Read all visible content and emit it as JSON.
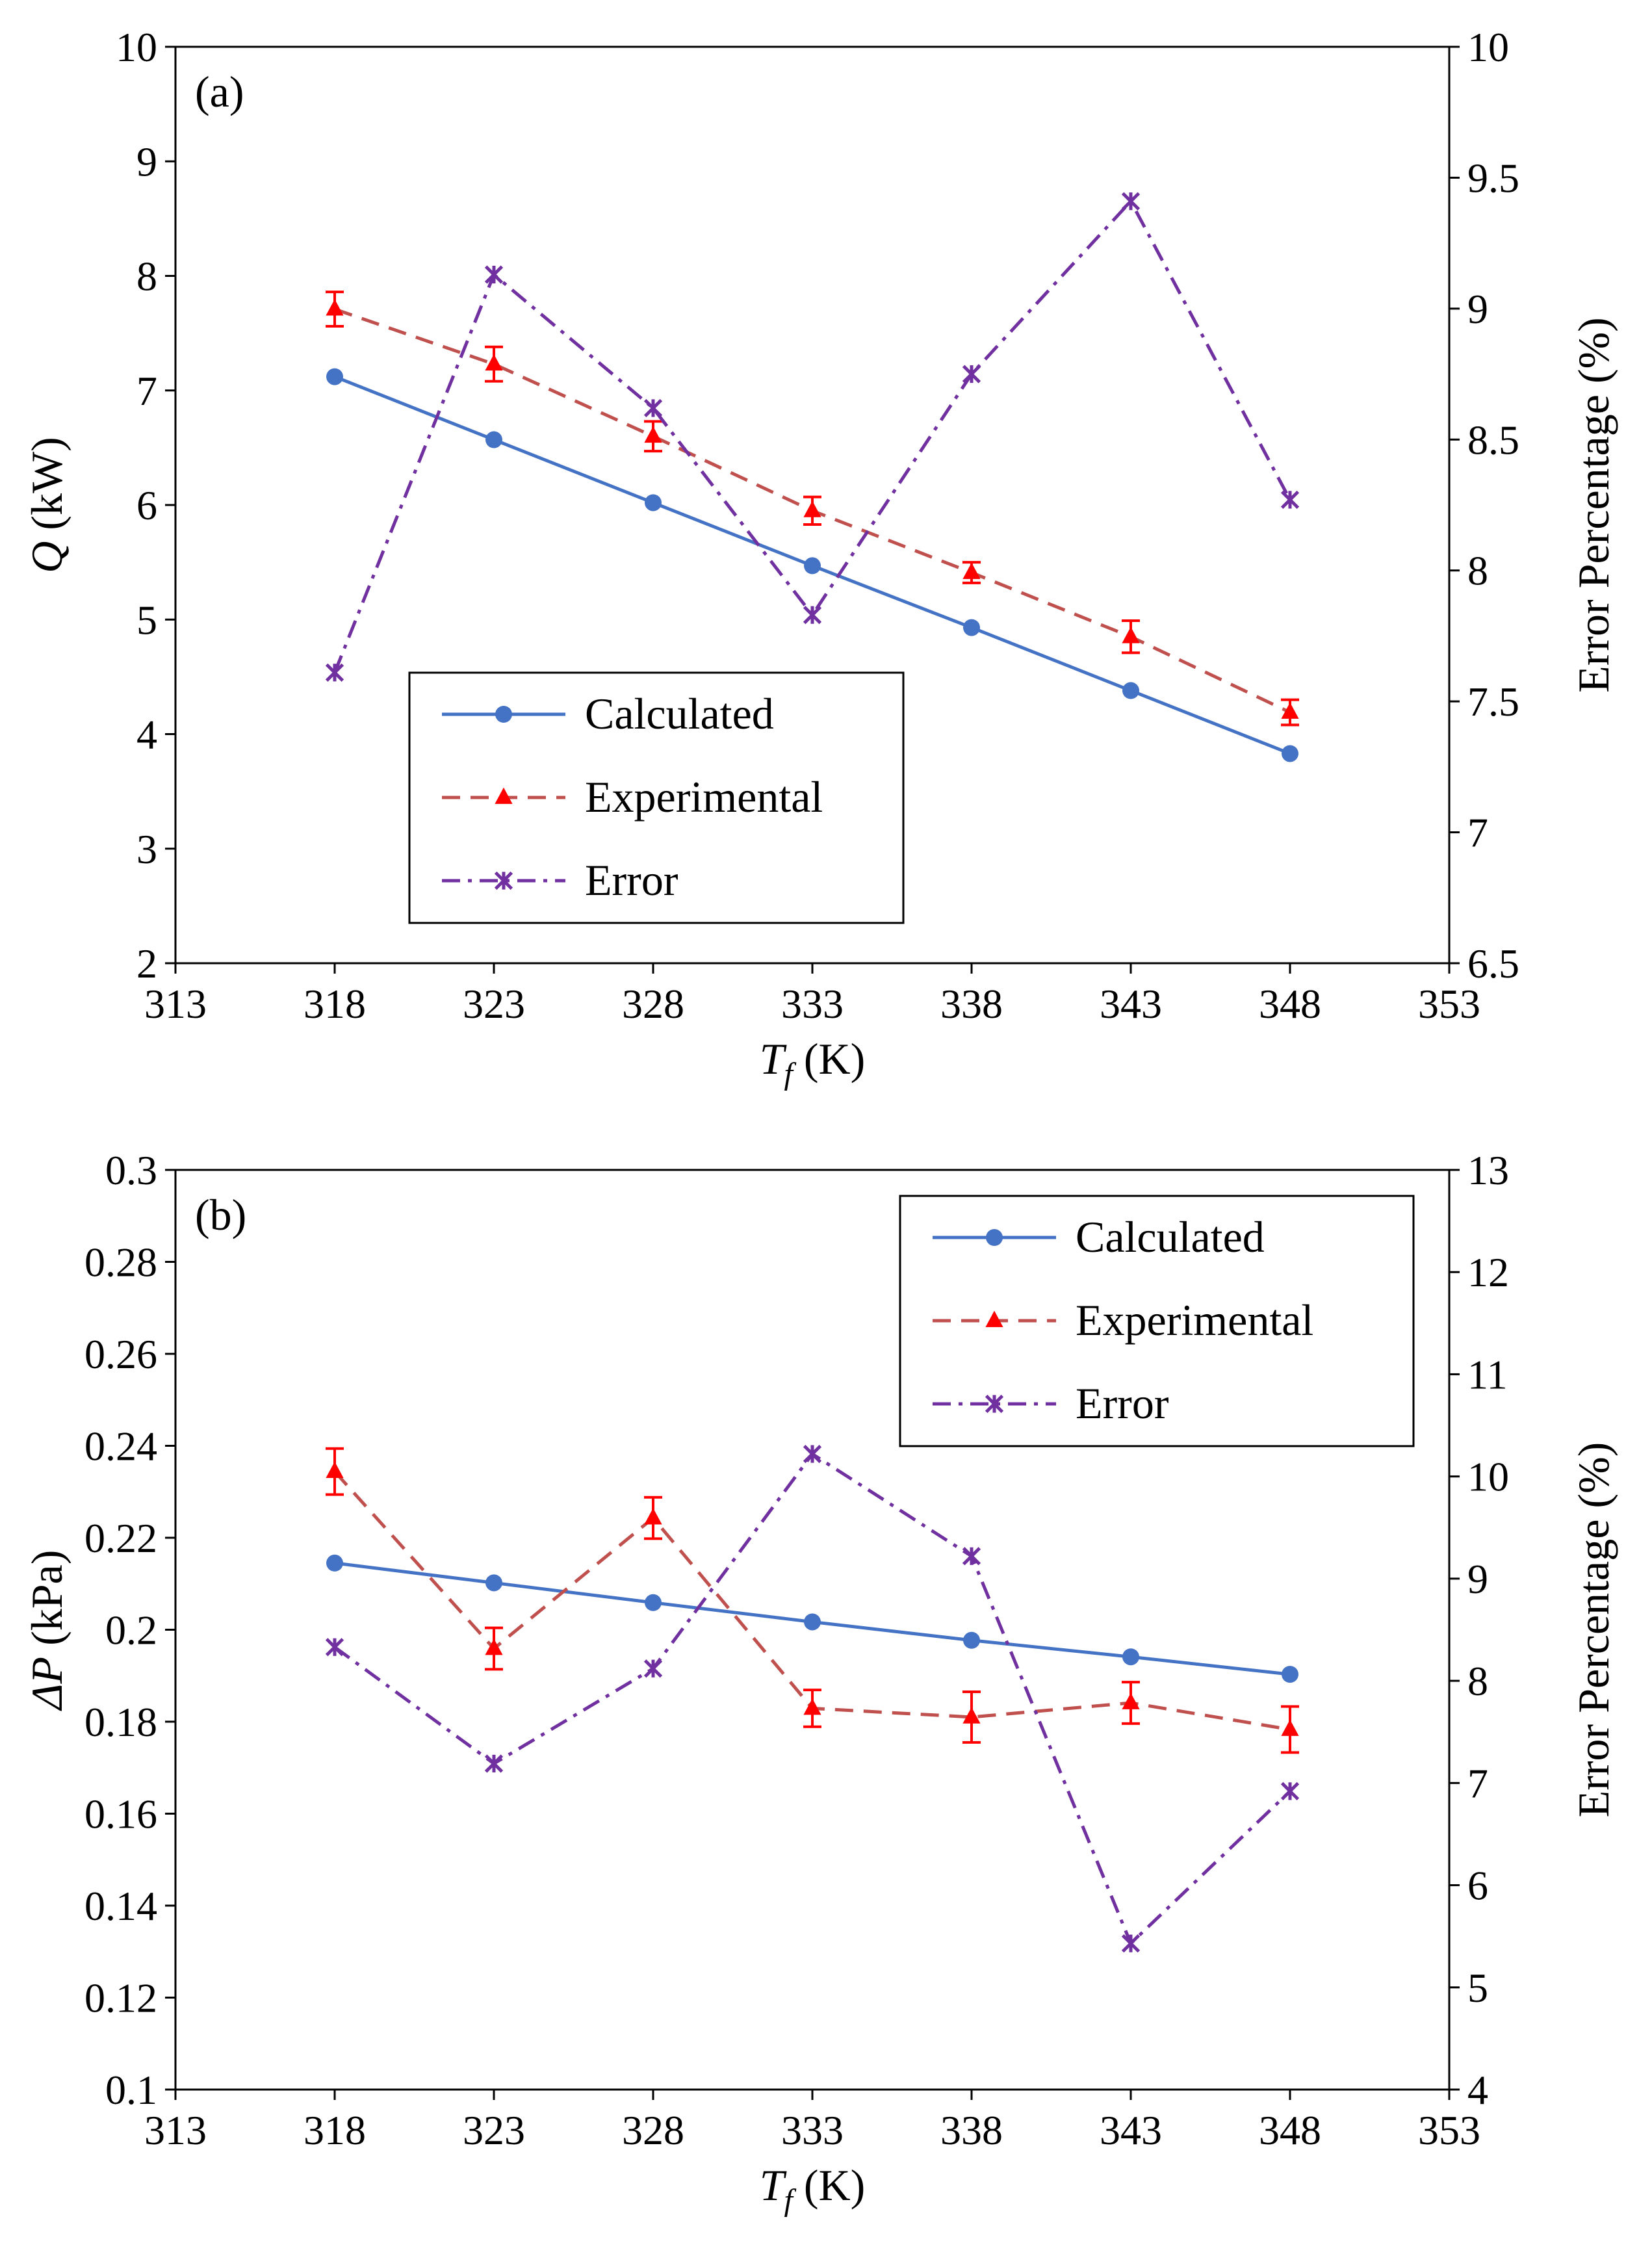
{
  "figure": {
    "series_styles": {
      "calculated": {
        "color": "#4472C4",
        "marker": "circle",
        "dash": "solid"
      },
      "experimental": {
        "color": "#C0504D",
        "marker_color": "#FF0000",
        "marker": "triangle",
        "dash": "dashed"
      },
      "error": {
        "color": "#7030A0",
        "marker": "asterisk",
        "dash": "dash-dot"
      }
    }
  },
  "chart_data": [
    {
      "type": "line",
      "panel_label": "(a)",
      "xlabel": {
        "main": "T",
        "sub": "f",
        "unit": " (K)"
      },
      "ylabel": {
        "main": "Q",
        "unit": " (kW)"
      },
      "y2label": "Error Percentage (%)",
      "xlim": [
        313,
        353
      ],
      "ylim": [
        2,
        10
      ],
      "y2lim": [
        6.5,
        10
      ],
      "x_ticks": [
        "313",
        "318",
        "323",
        "328",
        "333",
        "338",
        "343",
        "348",
        "353"
      ],
      "y_ticks": [
        "2",
        "3",
        "4",
        "5",
        "6",
        "7",
        "8",
        "9",
        "10"
      ],
      "y2_ticks": [
        "6.5",
        "7",
        "7.5",
        "8",
        "8.5",
        "9",
        "9.5",
        "10"
      ],
      "x": [
        318,
        323,
        328,
        333,
        338,
        343,
        348
      ],
      "series": [
        {
          "key": "calculated",
          "name": "Calculated",
          "axis": "left",
          "values": [
            7.12,
            6.57,
            6.02,
            5.47,
            4.93,
            4.38,
            3.83
          ]
        },
        {
          "key": "experimental",
          "name": "Experimental",
          "axis": "left",
          "values": [
            7.71,
            7.23,
            6.6,
            5.95,
            5.41,
            4.85,
            4.19
          ],
          "error": [
            0.15,
            0.15,
            0.13,
            0.12,
            0.09,
            0.14,
            0.11
          ]
        },
        {
          "key": "error",
          "name": "Error",
          "axis": "right",
          "values": [
            7.61,
            9.13,
            8.62,
            7.83,
            8.75,
            9.41,
            8.27
          ]
        }
      ],
      "legend": {
        "placement": "bottom-center",
        "entries": [
          "Calculated",
          "Experimental",
          "Error"
        ]
      }
    },
    {
      "type": "line",
      "panel_label": "(b)",
      "xlabel": {
        "main": "T",
        "sub": "f",
        "unit": " (K)"
      },
      "ylabel": {
        "main": "ΔP",
        "unit": " (kPa)"
      },
      "y2label": "Error Percentage (%)",
      "xlim": [
        313,
        353
      ],
      "ylim": [
        0.1,
        0.3
      ],
      "y2lim": [
        4,
        13
      ],
      "x_ticks": [
        "313",
        "318",
        "323",
        "328",
        "333",
        "338",
        "343",
        "348",
        "353"
      ],
      "y_ticks": [
        "0.1",
        "0.12",
        "0.14",
        "0.16",
        "0.18",
        "0.2",
        "0.22",
        "0.24",
        "0.26",
        "0.28",
        "0.3"
      ],
      "y2_ticks": [
        "4",
        "5",
        "6",
        "7",
        "8",
        "9",
        "10",
        "11",
        "12",
        "13"
      ],
      "x": [
        318,
        323,
        328,
        333,
        338,
        343,
        348
      ],
      "series": [
        {
          "key": "calculated",
          "name": "Calculated",
          "axis": "left",
          "values": [
            0.2145,
            0.2102,
            0.2059,
            0.2017,
            0.1977,
            0.1941,
            0.1903
          ]
        },
        {
          "key": "experimental",
          "name": "Experimental",
          "axis": "left",
          "values": [
            0.2344,
            0.1959,
            0.2243,
            0.1829,
            0.181,
            0.1841,
            0.1783
          ],
          "error": [
            0.005,
            0.0045,
            0.0045,
            0.004,
            0.0055,
            0.0045,
            0.005
          ]
        },
        {
          "key": "error",
          "name": "Error",
          "axis": "right",
          "values": [
            8.33,
            7.19,
            8.12,
            10.22,
            9.22,
            5.43,
            6.92
          ]
        }
      ],
      "legend": {
        "placement": "top-right",
        "entries": [
          "Calculated",
          "Experimental",
          "Error"
        ]
      }
    }
  ]
}
